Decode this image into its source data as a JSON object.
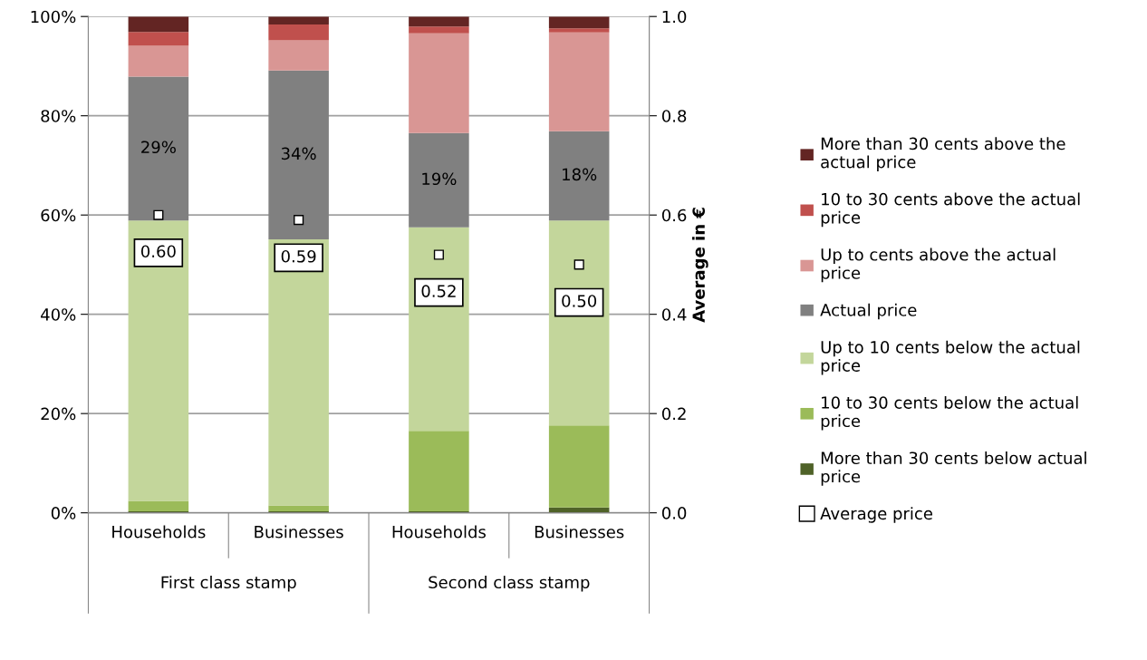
{
  "chart_data": {
    "type": "bar",
    "stacked": true,
    "categories": [
      "Households",
      "Businesses",
      "Households",
      "Businesses"
    ],
    "series": [
      {
        "name": "More than 30 cents below actual\nprice",
        "color": "#4f6228",
        "values": [
          0.3,
          0.3,
          0.3,
          1.1
        ]
      },
      {
        "name": "10 to 30 cents below the actual\nprice",
        "color": "#9bbb59",
        "values": [
          2.1,
          1.2,
          16.2,
          16.5
        ]
      },
      {
        "name": "Up to 10 cents below the actual\nprice",
        "color": "#c3d69b",
        "values": [
          56.5,
          53.6,
          41.0,
          41.3
        ]
      },
      {
        "name": "Actual price",
        "color": "#808080",
        "values": [
          29,
          34,
          19,
          18
        ],
        "value_labels": [
          "29%",
          "34%",
          "19%",
          "18%"
        ]
      },
      {
        "name": "Up to cents above the actual\nprice",
        "color": "#d99694",
        "values": [
          6.2,
          6.1,
          20.1,
          19.9
        ]
      },
      {
        "name": "10 to 30 cents above the actual\nprice",
        "color": "#c0504d",
        "values": [
          2.8,
          3.2,
          1.4,
          0.8
        ]
      },
      {
        "name": "More than 30 cents above the\nactual price",
        "color": "#632523",
        "values": [
          3.1,
          1.6,
          2.0,
          2.4
        ]
      },
      {
        "name": "Average price",
        "type": "scatter",
        "axis": "y2",
        "marker": "square",
        "color": "#000000",
        "values": [
          0.6,
          0.59,
          0.52,
          0.5
        ],
        "value_labels": [
          "0.60",
          "0.59",
          "0.52",
          "0.50"
        ]
      }
    ],
    "annotations": [
      "First class stamp",
      "Second class stamp"
    ],
    "y2label": "Average in €",
    "ylim": [
      0,
      100
    ],
    "yticks": [
      {
        "value": 0,
        "label": "0%"
      },
      {
        "value": 20,
        "label": "20%"
      },
      {
        "value": 40,
        "label": "40%"
      },
      {
        "value": 60,
        "label": "60%"
      },
      {
        "value": 80,
        "label": "80%"
      },
      {
        "value": 100,
        "label": "100%"
      }
    ],
    "y2lim": [
      0,
      1
    ],
    "y2ticks": [
      {
        "value": 0,
        "label": "0.0"
      },
      {
        "value": 0.2,
        "label": "0.2"
      },
      {
        "value": 0.4,
        "label": "0.4"
      },
      {
        "value": 0.6,
        "label": "0.6"
      },
      {
        "value": 0.8,
        "label": "0.8"
      },
      {
        "value": 1,
        "label": "1.0"
      }
    ],
    "grid": "y",
    "legend": "right"
  }
}
